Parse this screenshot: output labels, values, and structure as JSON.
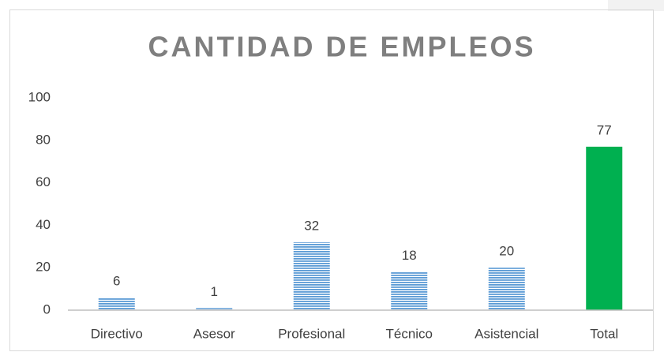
{
  "chart_data": {
    "type": "bar",
    "title": "CANTIDAD DE EMPLEOS",
    "categories": [
      "Directivo",
      "Asesor",
      "Profesional",
      "Técnico",
      "Asistencial",
      "Total"
    ],
    "values": [
      6,
      1,
      32,
      18,
      20,
      77
    ],
    "colors": [
      "#5b9bd5",
      "#5b9bd5",
      "#5b9bd5",
      "#5b9bd5",
      "#5b9bd5",
      "#00b050"
    ],
    "fill_styles": [
      "striped",
      "striped",
      "striped",
      "striped",
      "striped",
      "solid"
    ],
    "ylim": [
      0,
      100
    ],
    "yticks": [
      0,
      20,
      40,
      60,
      80,
      100
    ],
    "grid": false,
    "data_labels": true
  }
}
